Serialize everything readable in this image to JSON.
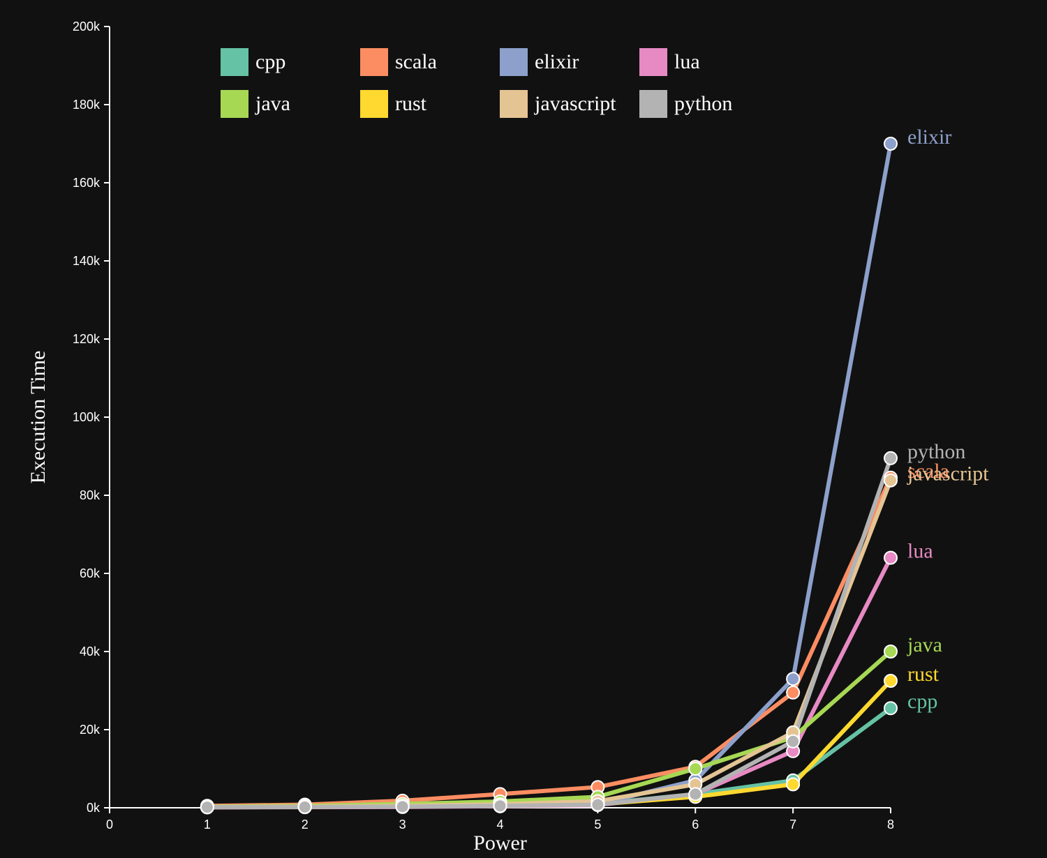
{
  "chart_data": {
    "type": "line",
    "xlabel": "Power",
    "ylabel": "Execution Time",
    "x": [
      1,
      2,
      3,
      4,
      5,
      6,
      7,
      8
    ],
    "xlim": [
      0,
      8
    ],
    "ylim": [
      0,
      200000
    ],
    "x_ticks": [
      "0",
      "1",
      "2",
      "3",
      "4",
      "5",
      "6",
      "7",
      "8"
    ],
    "y_ticks": [
      "0k",
      "20k",
      "40k",
      "60k",
      "80k",
      "100k",
      "120k",
      "140k",
      "160k",
      "180k",
      "200k"
    ],
    "grid": false,
    "legend_position": "top",
    "end_labels": true,
    "series": [
      {
        "name": "cpp",
        "color": "#66c2a5",
        "values": [
          200,
          250,
          400,
          600,
          1000,
          3500,
          7000,
          25500
        ]
      },
      {
        "name": "scala",
        "color": "#fc8d62",
        "values": [
          500,
          800,
          1800,
          3500,
          5300,
          10500,
          29500,
          84500
        ]
      },
      {
        "name": "elixir",
        "color": "#8da0cb",
        "values": [
          150,
          200,
          300,
          500,
          900,
          7000,
          33000,
          170000
        ]
      },
      {
        "name": "lua",
        "color": "#e78ac3",
        "values": [
          100,
          150,
          200,
          400,
          700,
          3500,
          14500,
          64000
        ]
      },
      {
        "name": "java",
        "color": "#a6d854",
        "values": [
          300,
          500,
          1000,
          1600,
          2800,
          10000,
          18000,
          40000
        ]
      },
      {
        "name": "rust",
        "color": "#ffd92f",
        "values": [
          150,
          200,
          400,
          600,
          900,
          2800,
          6000,
          32500
        ]
      },
      {
        "name": "javascript",
        "color": "#e5c494",
        "values": [
          200,
          300,
          500,
          900,
          1700,
          6000,
          19300,
          83800
        ]
      },
      {
        "name": "python",
        "color": "#b3b3b3",
        "values": [
          150,
          200,
          300,
          500,
          800,
          3500,
          17000,
          89500
        ]
      }
    ]
  }
}
